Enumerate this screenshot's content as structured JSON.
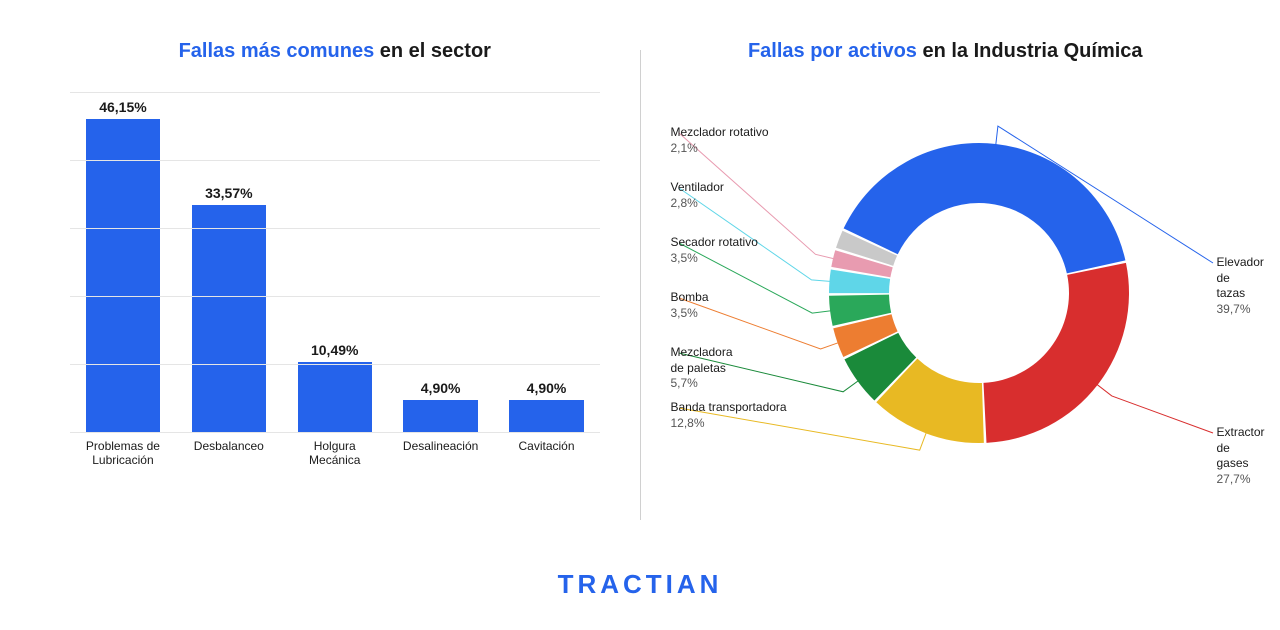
{
  "brand": "TRACTIAN",
  "brand_color": "#2563eb",
  "background_color": "#ffffff",
  "divider_color": "#d0d0d0",
  "bar_chart": {
    "type": "bar",
    "title_accent": "Fallas más comunes",
    "title_rest": " en el sector",
    "title_fontsize": 20,
    "label_fontsize": 12,
    "value_fontsize": 14,
    "bar_color": "#2563eb",
    "grid_color": "#e5e5e5",
    "ymax": 50,
    "grid_steps": 5,
    "bar_width_pct": 78,
    "items": [
      {
        "label": "Problemas de\nLubricación",
        "value": 46.15,
        "display": "46,15%"
      },
      {
        "label": "Desbalanceo",
        "value": 33.57,
        "display": "33,57%"
      },
      {
        "label": "Holgura\nMecánica",
        "value": 10.49,
        "display": "10,49%"
      },
      {
        "label": "Desalineación",
        "value": 4.9,
        "display": "4,90%"
      },
      {
        "label": "Cavitación",
        "value": 4.9,
        "display": "4,90%"
      }
    ]
  },
  "donut_chart": {
    "type": "pie",
    "title_accent": "Fallas por activos",
    "title_rest": " en la Industria Química",
    "title_fontsize": 20,
    "label_fontsize": 12,
    "outer_radius": 150,
    "inner_radius": 90,
    "gap_deg": 1,
    "start_angle_deg": -65,
    "slices": [
      {
        "name": "Elevador de tazas",
        "value": 39.7,
        "display": "39,7%",
        "color": "#2563eb"
      },
      {
        "name": "Extractor de gases",
        "value": 27.7,
        "display": "27,7%",
        "color": "#d82e2e"
      },
      {
        "name": "Banda transportadora",
        "value": 12.8,
        "display": "12,8%",
        "color": "#e8b923"
      },
      {
        "name": "Mezcladora de paletas",
        "value": 5.7,
        "display": "5,7%",
        "color": "#1a8a3a"
      },
      {
        "name": "Bomba",
        "value": 3.5,
        "display": "3,5%",
        "color": "#ed7d31"
      },
      {
        "name": "Secador rotativo",
        "value": 3.5,
        "display": "3,5%",
        "color": "#2aa85a"
      },
      {
        "name": "Ventilador",
        "value": 2.8,
        "display": "2,8%",
        "color": "#5fd6e8"
      },
      {
        "name": "Mezclador rotativo",
        "value": 2.1,
        "display": "2,1%",
        "color": "#e89bb0"
      },
      {
        "name": "",
        "value": 2.2,
        "display": "",
        "color": "#c9c9c9"
      }
    ],
    "callouts_right": [
      {
        "slice": 0,
        "name": "Elevador\nde tazas",
        "display": "39,7%"
      },
      {
        "slice": 1,
        "name": "Extractor de gases",
        "display": "27,7%"
      }
    ],
    "callouts_left": [
      {
        "slice": 7,
        "name": "Mezclador rotativo",
        "display": "2,1%"
      },
      {
        "slice": 6,
        "name": "Ventilador",
        "display": "2,8%"
      },
      {
        "slice": 5,
        "name": "Secador rotativo",
        "display": "3,5%"
      },
      {
        "slice": 4,
        "name": "Bomba",
        "display": "3,5%"
      },
      {
        "slice": 3,
        "name": "Mezcladora\nde paletas",
        "display": "5,7%"
      },
      {
        "slice": 2,
        "name": "Banda transportadora",
        "display": "12,8%"
      }
    ]
  }
}
